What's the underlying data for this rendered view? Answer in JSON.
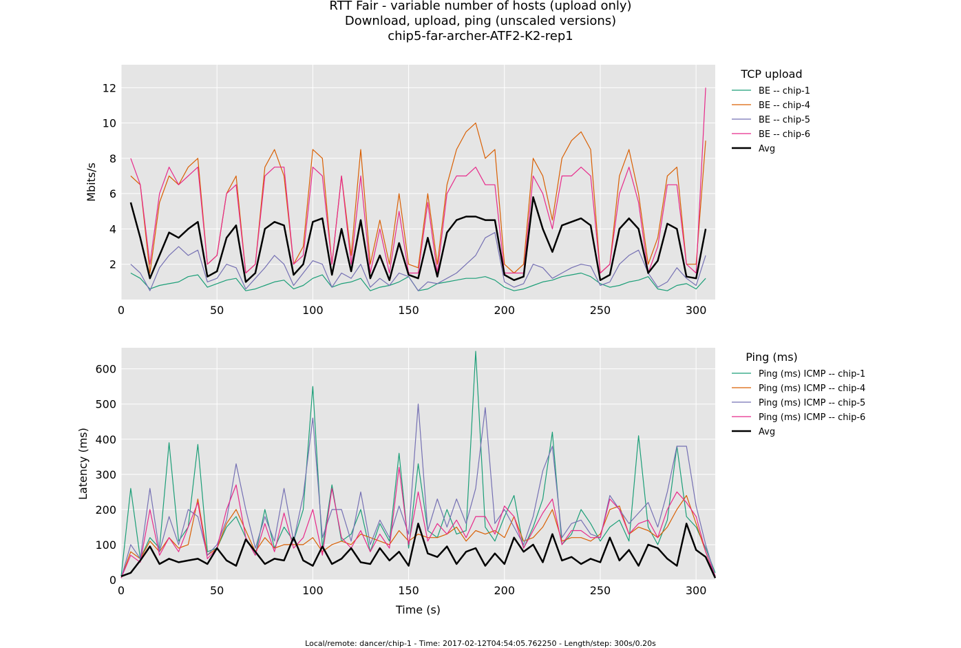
{
  "figure": {
    "title_lines": [
      "RTT Fair - variable number of hosts (upload only)",
      "Download, upload, ping (unscaled versions)",
      "chip5-far-archer-ATF2-K2-rep1"
    ],
    "footer": "Local/remote: dancer/chip-1 - Time: 2017-02-12T04:54:05.762250 - Length/step: 300s/0.20s"
  },
  "colors": {
    "panel_bg": "#e5e5e5",
    "grid": "#ffffff",
    "chip-1": "#1b9e77",
    "chip-4": "#d95f02",
    "chip-5": "#7570b3",
    "chip-6": "#e7298a",
    "avg": "#000000"
  },
  "chart_data": [
    {
      "type": "line",
      "id": "upload",
      "title": "",
      "xlabel": "",
      "ylabel": "Mbits/s",
      "xlim": [
        0,
        310
      ],
      "ylim": [
        0,
        13.3
      ],
      "xticks": [
        0,
        50,
        100,
        150,
        200,
        250,
        300
      ],
      "yticks": [
        2,
        4,
        6,
        8,
        10,
        12
      ],
      "grid": true,
      "legend_title": "TCP upload",
      "legend_position": "right-outside",
      "x": [
        5,
        10,
        15,
        20,
        25,
        30,
        35,
        40,
        45,
        50,
        55,
        60,
        65,
        70,
        75,
        80,
        85,
        90,
        95,
        100,
        105,
        110,
        115,
        120,
        125,
        130,
        135,
        140,
        145,
        150,
        155,
        160,
        165,
        170,
        175,
        180,
        185,
        190,
        195,
        200,
        205,
        210,
        215,
        220,
        225,
        230,
        235,
        240,
        245,
        250,
        255,
        260,
        265,
        270,
        275,
        280,
        285,
        290,
        295,
        300,
        305
      ],
      "series": [
        {
          "name": "BE -- chip-1",
          "key": "chip-1",
          "values": [
            1.5,
            1.2,
            0.6,
            0.8,
            0.9,
            1.0,
            1.3,
            1.4,
            0.7,
            0.9,
            1.1,
            1.2,
            0.5,
            0.6,
            0.8,
            1.0,
            1.1,
            0.6,
            0.8,
            1.2,
            1.4,
            0.7,
            0.9,
            1.0,
            1.2,
            0.5,
            0.7,
            0.8,
            1.0,
            1.3,
            0.5,
            0.6,
            0.9,
            1.0,
            1.1,
            1.2,
            1.2,
            1.3,
            1.1,
            0.7,
            0.5,
            0.6,
            0.8,
            1.0,
            1.1,
            1.3,
            1.4,
            1.5,
            1.3,
            0.9,
            0.7,
            0.8,
            1.0,
            1.1,
            1.3,
            0.6,
            0.5,
            0.8,
            0.9,
            0.6,
            1.2
          ]
        },
        {
          "name": "BE -- chip-4",
          "key": "chip-4",
          "values": [
            7.0,
            6.5,
            1.5,
            5.5,
            7.0,
            6.5,
            7.5,
            8.0,
            2.0,
            2.5,
            6.0,
            7.0,
            1.5,
            2.0,
            7.5,
            8.5,
            7.0,
            2.0,
            3.0,
            8.5,
            8.0,
            2.0,
            7.0,
            2.5,
            8.5,
            2.0,
            4.5,
            2.0,
            6.0,
            2.0,
            1.8,
            6.0,
            2.0,
            6.5,
            8.5,
            9.5,
            10.0,
            8.0,
            8.5,
            2.0,
            1.5,
            2.0,
            8.0,
            7.0,
            4.5,
            8.0,
            9.0,
            9.5,
            8.5,
            1.5,
            2.0,
            7.0,
            8.5,
            6.0,
            2.0,
            3.5,
            7.0,
            7.5,
            2.0,
            2.0,
            9.0
          ]
        },
        {
          "name": "BE -- chip-5",
          "key": "chip-5",
          "values": [
            2.0,
            1.5,
            0.5,
            1.8,
            2.5,
            3.0,
            2.5,
            2.8,
            1.0,
            1.2,
            2.0,
            1.8,
            0.6,
            1.2,
            1.8,
            2.5,
            2.0,
            0.8,
            1.5,
            2.2,
            2.0,
            0.7,
            1.5,
            1.2,
            2.0,
            0.7,
            1.2,
            0.8,
            1.5,
            1.3,
            0.5,
            1.0,
            0.9,
            1.2,
            1.5,
            2.0,
            2.5,
            3.5,
            3.8,
            1.0,
            0.7,
            0.9,
            2.0,
            1.8,
            1.2,
            1.5,
            1.8,
            2.0,
            1.9,
            0.8,
            1.0,
            2.0,
            2.5,
            2.8,
            1.5,
            0.7,
            1.0,
            1.8,
            1.2,
            0.8,
            2.5
          ]
        },
        {
          "name": "BE -- chip-6",
          "key": "chip-6",
          "values": [
            8.0,
            6.5,
            2.0,
            6.0,
            7.5,
            6.5,
            7.0,
            7.5,
            2.0,
            2.5,
            6.0,
            6.5,
            1.5,
            2.0,
            7.0,
            7.5,
            7.5,
            2.0,
            2.5,
            7.5,
            7.0,
            2.0,
            7.0,
            2.0,
            7.0,
            1.5,
            4.0,
            1.5,
            5.0,
            1.5,
            1.5,
            5.5,
            1.5,
            6.0,
            7.0,
            7.0,
            7.5,
            6.5,
            6.5,
            1.5,
            1.5,
            1.5,
            7.0,
            6.0,
            4.0,
            7.0,
            7.0,
            7.5,
            7.0,
            1.5,
            2.0,
            6.0,
            7.5,
            5.5,
            1.5,
            3.0,
            6.5,
            6.5,
            2.0,
            1.5,
            12.0
          ]
        },
        {
          "name": "Avg",
          "key": "avg",
          "values": [
            5.5,
            3.5,
            1.2,
            2.5,
            3.8,
            3.5,
            4.0,
            4.4,
            1.3,
            1.6,
            3.5,
            4.2,
            1.0,
            1.5,
            4.0,
            4.4,
            4.2,
            1.4,
            2.0,
            4.4,
            4.6,
            1.4,
            4.0,
            1.6,
            4.5,
            1.2,
            2.5,
            1.1,
            3.2,
            1.4,
            1.2,
            3.5,
            1.3,
            3.8,
            4.5,
            4.7,
            4.7,
            4.5,
            4.5,
            1.4,
            1.1,
            1.3,
            5.8,
            4.0,
            2.7,
            4.2,
            4.4,
            4.6,
            4.2,
            1.1,
            1.4,
            4.0,
            4.6,
            4.0,
            1.5,
            2.2,
            4.3,
            4.0,
            1.3,
            1.2,
            4.0
          ]
        }
      ]
    },
    {
      "type": "line",
      "id": "ping",
      "title": "",
      "xlabel": "Time (s)",
      "ylabel": "Latency (ms)",
      "xlim": [
        0,
        310
      ],
      "ylim": [
        0,
        660
      ],
      "xticks": [
        0,
        50,
        100,
        150,
        200,
        250,
        300
      ],
      "yticks": [
        0,
        100,
        200,
        300,
        400,
        500,
        600
      ],
      "grid": true,
      "legend_title": "Ping (ms)",
      "legend_position": "right-outside",
      "x": [
        0,
        5,
        10,
        15,
        20,
        25,
        30,
        35,
        40,
        45,
        50,
        55,
        60,
        65,
        70,
        75,
        80,
        85,
        90,
        95,
        100,
        105,
        110,
        115,
        120,
        125,
        130,
        135,
        140,
        145,
        150,
        155,
        160,
        165,
        170,
        175,
        180,
        185,
        190,
        195,
        200,
        205,
        210,
        215,
        220,
        225,
        230,
        235,
        240,
        245,
        250,
        255,
        260,
        265,
        270,
        275,
        280,
        285,
        290,
        295,
        300,
        305,
        310
      ],
      "series": [
        {
          "name": "Ping (ms) ICMP -- chip-1",
          "key": "chip-1",
          "values": [
            10,
            260,
            60,
            120,
            90,
            390,
            110,
            150,
            385,
            80,
            90,
            150,
            180,
            120,
            70,
            200,
            90,
            150,
            110,
            200,
            550,
            90,
            270,
            110,
            130,
            200,
            80,
            160,
            110,
            360,
            90,
            330,
            140,
            120,
            200,
            130,
            140,
            650,
            150,
            110,
            180,
            240,
            90,
            150,
            230,
            420,
            100,
            130,
            200,
            160,
            110,
            150,
            170,
            110,
            410,
            150,
            100,
            170,
            380,
            180,
            150,
            90,
            20
          ]
        },
        {
          "name": "Ping (ms) ICMP -- chip-4",
          "key": "chip-4",
          "values": [
            5,
            80,
            60,
            110,
            80,
            120,
            90,
            100,
            230,
            70,
            90,
            160,
            200,
            140,
            80,
            120,
            90,
            100,
            100,
            100,
            120,
            80,
            100,
            110,
            100,
            130,
            120,
            110,
            100,
            140,
            110,
            130,
            120,
            120,
            130,
            150,
            110,
            140,
            130,
            140,
            120,
            180,
            110,
            120,
            150,
            200,
            110,
            120,
            120,
            110,
            130,
            200,
            210,
            130,
            150,
            140,
            120,
            150,
            200,
            240,
            160,
            80,
            10
          ]
        },
        {
          "name": "Ping (ms) ICMP -- chip-5",
          "key": "chip-5",
          "values": [
            5,
            100,
            60,
            260,
            80,
            180,
            100,
            200,
            180,
            70,
            100,
            170,
            330,
            200,
            90,
            180,
            110,
            260,
            110,
            240,
            460,
            120,
            200,
            200,
            110,
            250,
            100,
            170,
            120,
            210,
            130,
            500,
            140,
            230,
            150,
            230,
            160,
            260,
            490,
            160,
            200,
            150,
            100,
            180,
            310,
            380,
            120,
            160,
            170,
            130,
            120,
            240,
            200,
            160,
            190,
            220,
            150,
            250,
            380,
            380,
            210,
            100,
            10
          ]
        },
        {
          "name": "Ping (ms) ICMP -- chip-6",
          "key": "chip-6",
          "values": [
            5,
            70,
            50,
            200,
            70,
            120,
            80,
            150,
            220,
            60,
            90,
            200,
            270,
            120,
            70,
            160,
            80,
            190,
            90,
            120,
            200,
            70,
            260,
            120,
            90,
            140,
            80,
            130,
            90,
            320,
            100,
            250,
            110,
            160,
            130,
            170,
            120,
            180,
            180,
            130,
            210,
            180,
            90,
            140,
            190,
            230,
            100,
            140,
            140,
            120,
            120,
            230,
            200,
            130,
            160,
            170,
            120,
            200,
            250,
            220,
            180,
            80,
            10
          ]
        },
        {
          "name": "Avg",
          "key": "avg",
          "values": [
            10,
            20,
            55,
            95,
            45,
            60,
            50,
            55,
            60,
            45,
            90,
            55,
            40,
            115,
            80,
            45,
            60,
            55,
            120,
            55,
            40,
            95,
            45,
            60,
            90,
            50,
            45,
            90,
            55,
            80,
            40,
            160,
            75,
            65,
            95,
            45,
            80,
            90,
            40,
            75,
            45,
            120,
            80,
            100,
            50,
            130,
            55,
            65,
            45,
            60,
            50,
            120,
            55,
            85,
            40,
            100,
            90,
            60,
            40,
            160,
            85,
            65,
            5
          ]
        }
      ]
    }
  ]
}
